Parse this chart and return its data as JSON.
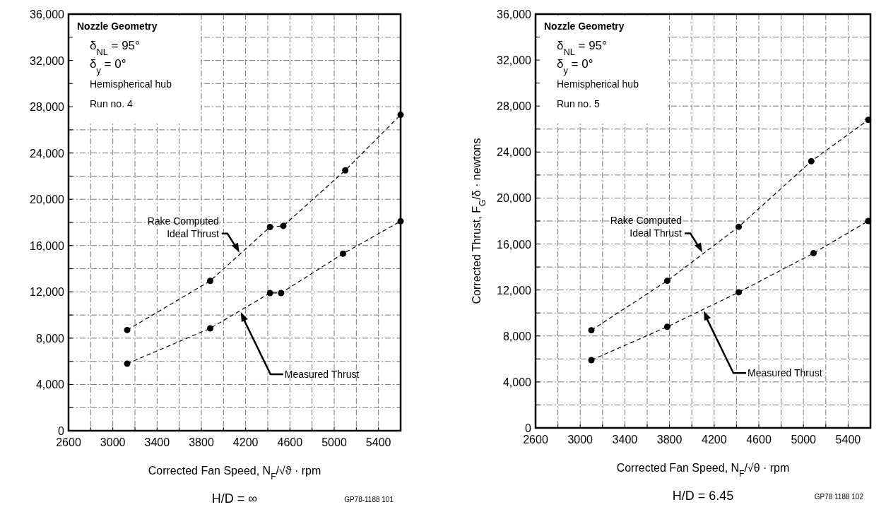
{
  "chart_data": [
    {
      "type": "line",
      "xlabel": "Corrected Fan Speed, N$_{F}$/√ϑ · rpm",
      "subtitle": "H/D = ∞",
      "annotations": [
        "Nozzle Geometry",
        "δ$_{NL}$ = 95°",
        "δ$_{y}$ = 0°",
        "Hemispherical hub",
        "Run no. 4",
        "GP78-1188 101"
      ],
      "xlim": [
        2600,
        5600
      ],
      "ylim": [
        0,
        36000
      ],
      "xticks": [
        2600,
        {
          "value": 2800,
          "label": null
        },
        3000,
        {
          "value": 3200,
          "label": null
        },
        3400,
        {
          "value": 3600,
          "label": null
        },
        3800,
        {
          "value": 4000,
          "label": null
        },
        4200,
        {
          "value": 4400,
          "label": null
        },
        4600,
        {
          "value": 4800,
          "label": null
        },
        5000,
        {
          "value": 5200,
          "label": null
        },
        5400,
        {
          "value": 5600,
          "label": null
        }
      ],
      "yticks": [
        {
          "value": 0,
          "label": "0"
        },
        {
          "value": 2000,
          "label": null
        },
        {
          "value": 4000,
          "label": "4,000"
        },
        {
          "value": 6000,
          "label": null
        },
        {
          "value": 8000,
          "label": "8,000"
        },
        {
          "value": 10000,
          "label": null
        },
        {
          "value": 12000,
          "label": "12,000"
        },
        {
          "value": 14000,
          "label": null
        },
        {
          "value": 16000,
          "label": "16,000"
        },
        {
          "value": 18000,
          "label": null
        },
        {
          "value": 20000,
          "label": "20,000"
        },
        {
          "value": 22000,
          "label": null
        },
        {
          "value": 24000,
          "label": "24,000"
        },
        {
          "value": 26000,
          "label": null
        },
        {
          "value": 28000,
          "label": "28,000"
        },
        {
          "value": 30000,
          "label": null
        },
        {
          "value": 32000,
          "label": "32,000"
        },
        {
          "value": 34000,
          "label": null
        },
        {
          "value": 36000,
          "label": "36,000"
        }
      ],
      "grid": true,
      "marker": "circle",
      "line_style": "dashed",
      "series": [
        {
          "name": "Rake Computed Ideal Thrust",
          "color": "#000000",
          "x": [
            3130,
            3880,
            4420,
            4540,
            5100,
            5600
          ],
          "values": [
            8700,
            12950,
            17600,
            17700,
            22500,
            27300
          ]
        },
        {
          "name": "Measured Thrust",
          "color": "#000000",
          "x": [
            3130,
            3880,
            4420,
            4520,
            5080,
            5600
          ],
          "values": [
            5800,
            8850,
            11900,
            11900,
            15300,
            18100
          ]
        }
      ]
    },
    {
      "type": "line",
      "xlabel": "Corrected Fan Speed, N$_{F}$/√θ · rpm",
      "ylabel": "Corrected Thrust, F$_{G}$/δ · newtons",
      "subtitle": "H/D = 6.45",
      "annotations": [
        "Nozzle Geometry",
        "δ$_{NL}$ = 95°",
        "δ$_{y}$ = 0°",
        "Hemispherical hub",
        "Run no. 5",
        "GP78 1188 102"
      ],
      "xlim": [
        2600,
        5600
      ],
      "ylim": [
        0,
        36000
      ],
      "xticks": [
        2600,
        {
          "value": 2800,
          "label": null
        },
        3000,
        {
          "value": 3200,
          "label": null
        },
        3400,
        {
          "value": 3600,
          "label": null
        },
        3800,
        {
          "value": 4000,
          "label": null
        },
        4200,
        {
          "value": 4400,
          "label": null
        },
        4600,
        {
          "value": 4800,
          "label": null
        },
        5000,
        {
          "value": 5200,
          "label": null
        },
        5400,
        {
          "value": 5600,
          "label": null
        }
      ],
      "yticks": [
        {
          "value": 0,
          "label": "0"
        },
        {
          "value": 2000,
          "label": null
        },
        {
          "value": 4000,
          "label": "4,000"
        },
        {
          "value": 6000,
          "label": null
        },
        {
          "value": 8000,
          "label": "8,000"
        },
        {
          "value": 10000,
          "label": null
        },
        {
          "value": 12000,
          "label": "12,000"
        },
        {
          "value": 14000,
          "label": null
        },
        {
          "value": 16000,
          "label": "16,000"
        },
        {
          "value": 18000,
          "label": null
        },
        {
          "value": 20000,
          "label": "20,000"
        },
        {
          "value": 22000,
          "label": null
        },
        {
          "value": 24000,
          "label": "24,000"
        },
        {
          "value": 26000,
          "label": null
        },
        {
          "value": 28000,
          "label": "28,000"
        },
        {
          "value": 30000,
          "label": null
        },
        {
          "value": 32000,
          "label": "32,000"
        },
        {
          "value": 34000,
          "label": null
        },
        {
          "value": 36000,
          "label": "36,000"
        }
      ],
      "grid": true,
      "marker": "circle",
      "line_style": "dashed",
      "series": [
        {
          "name": "Rake Computed Ideal Thrust",
          "color": "#000000",
          "x": [
            3100,
            3780,
            4420,
            5070,
            5580
          ],
          "values": [
            8500,
            12800,
            17500,
            23200,
            26800
          ]
        },
        {
          "name": "Measured Thrust",
          "color": "#000000",
          "x": [
            3100,
            3780,
            4420,
            5090,
            5580
          ],
          "values": [
            5900,
            8800,
            11800,
            15200,
            18000
          ]
        }
      ]
    }
  ]
}
